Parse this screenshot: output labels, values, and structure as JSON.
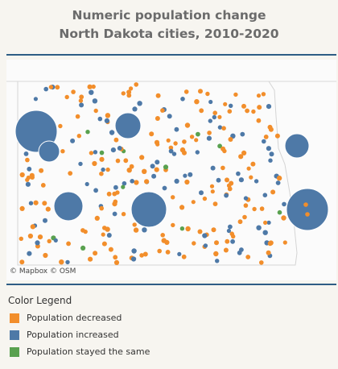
{
  "title": {
    "line1": "Numeric population change",
    "line2": "North Dakota cities, 2010-2020"
  },
  "map": {
    "credit": "© Mapbox © OSM"
  },
  "legend": {
    "title": "Color Legend",
    "items": [
      {
        "label": "Population decreased",
        "color": "#f28e2b"
      },
      {
        "label": "Population increased",
        "color": "#4e79a7"
      },
      {
        "label": "Population stayed the same",
        "color": "#59a14f"
      }
    ]
  }
}
